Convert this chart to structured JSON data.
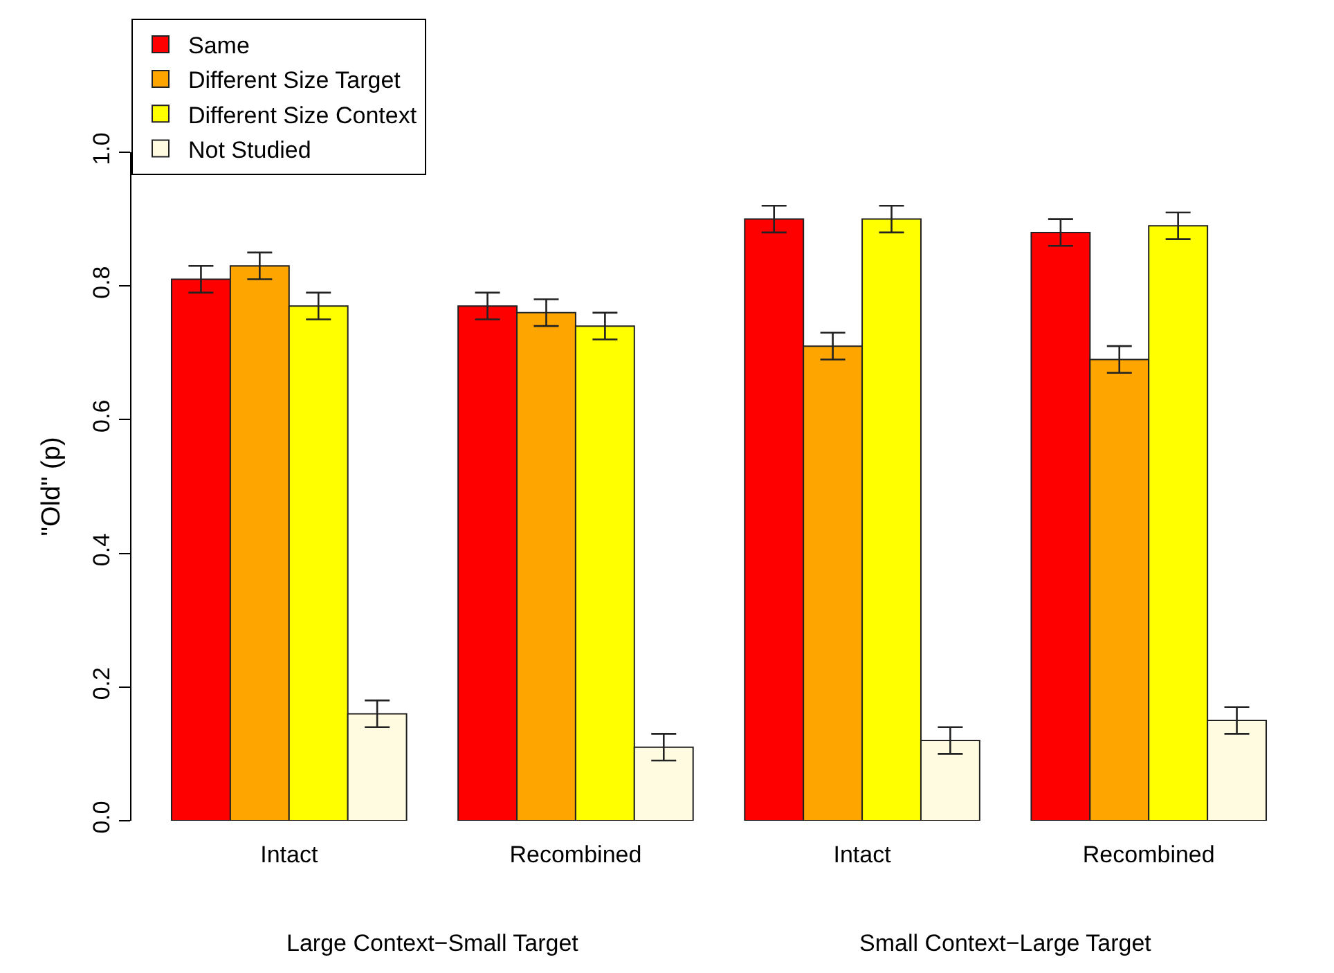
{
  "chart_data": {
    "type": "bar",
    "ylabel": "\"Old\" (p)",
    "categories": [
      "Intact",
      "Recombined",
      "Intact",
      "Recombined"
    ],
    "series": [
      {
        "name": "Same",
        "color": "#ff0000",
        "values": [
          0.81,
          0.77,
          0.9,
          0.88
        ],
        "errors": [
          0.02,
          0.02,
          0.02,
          0.02
        ]
      },
      {
        "name": "Different Size Target",
        "color": "#ffa500",
        "values": [
          0.83,
          0.76,
          0.71,
          0.69
        ],
        "errors": [
          0.02,
          0.02,
          0.02,
          0.02
        ]
      },
      {
        "name": "Different Size Context",
        "color": "#ffff00",
        "values": [
          0.77,
          0.74,
          0.9,
          0.89
        ],
        "errors": [
          0.02,
          0.02,
          0.02,
          0.02
        ]
      },
      {
        "name": "Not Studied",
        "color": "#fffbe0",
        "values": [
          0.16,
          0.11,
          0.12,
          0.15
        ],
        "errors": [
          0.02,
          0.02,
          0.02,
          0.02
        ]
      }
    ],
    "annotations": [
      "Large Context−Small Target",
      "Small Context−Large Target"
    ],
    "ylim": [
      0,
      1
    ],
    "yticks": [
      {
        "value": 0,
        "label": "0.0"
      },
      {
        "value": 0.2,
        "label": "0.2"
      },
      {
        "value": 0.4,
        "label": "0.4"
      },
      {
        "value": 0.6,
        "label": "0.6"
      },
      {
        "value": 0.8,
        "label": "0.8"
      },
      {
        "value": 1,
        "label": "1.0"
      }
    ],
    "legend": "top left"
  }
}
